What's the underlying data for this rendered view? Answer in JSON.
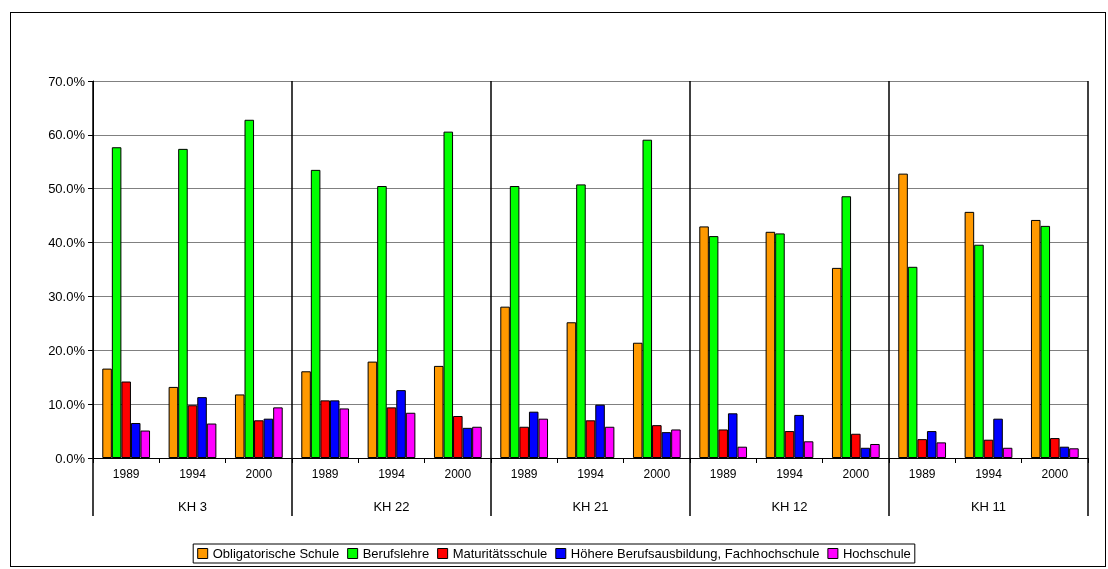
{
  "chart_data": {
    "type": "bar",
    "categories": [
      "1989",
      "1994",
      "2000",
      "1989",
      "1994",
      "2000",
      "1989",
      "1994",
      "2000",
      "1989",
      "1994",
      "2000",
      "1989",
      "1994",
      "2000"
    ],
    "annotations": [
      "KH 3",
      "KH 22",
      "KH 21",
      "KH 12",
      "KH 11"
    ],
    "series": [
      {
        "name": "Obligatorische Schule",
        "color": "#ff9900",
        "values": [
          16.6,
          13.2,
          11.8,
          16.1,
          17.9,
          17.1,
          28.1,
          25.2,
          21.4,
          43.0,
          42.0,
          35.3,
          52.8,
          45.7,
          44.2
        ]
      },
      {
        "name": "Berufslehre",
        "color": "#00ff00",
        "values": [
          57.7,
          57.4,
          62.8,
          53.5,
          50.5,
          60.6,
          50.5,
          50.8,
          59.1,
          41.2,
          41.7,
          48.6,
          35.5,
          39.6,
          43.1
        ]
      },
      {
        "name": "Maturitätsschule",
        "color": "#ff0000",
        "values": [
          14.2,
          9.8,
          7.0,
          10.7,
          9.4,
          7.8,
          5.8,
          7.0,
          6.1,
          5.3,
          5.0,
          4.5,
          3.5,
          3.4,
          3.7
        ]
      },
      {
        "name": "Höhere Berufsausbildung, Fachhochschule",
        "color": "#0000ff",
        "values": [
          6.5,
          11.3,
          7.3,
          10.7,
          12.6,
          5.6,
          8.6,
          9.9,
          4.8,
          8.3,
          8.0,
          1.9,
          5.0,
          7.3,
          2.1
        ]
      },
      {
        "name": "Hochschule",
        "color": "#ff00ff",
        "values": [
          5.1,
          6.4,
          9.4,
          9.2,
          8.4,
          5.8,
          7.3,
          5.8,
          5.3,
          2.1,
          3.1,
          2.6,
          2.9,
          1.9,
          1.8
        ]
      }
    ],
    "ylim": [
      0,
      70
    ],
    "yticks": [
      {
        "value": 0,
        "label": "0.0%"
      },
      {
        "value": 10,
        "label": "10.0%"
      },
      {
        "value": 20,
        "label": "20.0%"
      },
      {
        "value": 30,
        "label": "30.0%"
      },
      {
        "value": 40,
        "label": "40.0%"
      },
      {
        "value": 50,
        "label": "50.0%"
      },
      {
        "value": 60,
        "label": "60.0%"
      },
      {
        "value": 70,
        "label": "70.0%"
      }
    ],
    "grid": "y",
    "legend": "bottom"
  }
}
